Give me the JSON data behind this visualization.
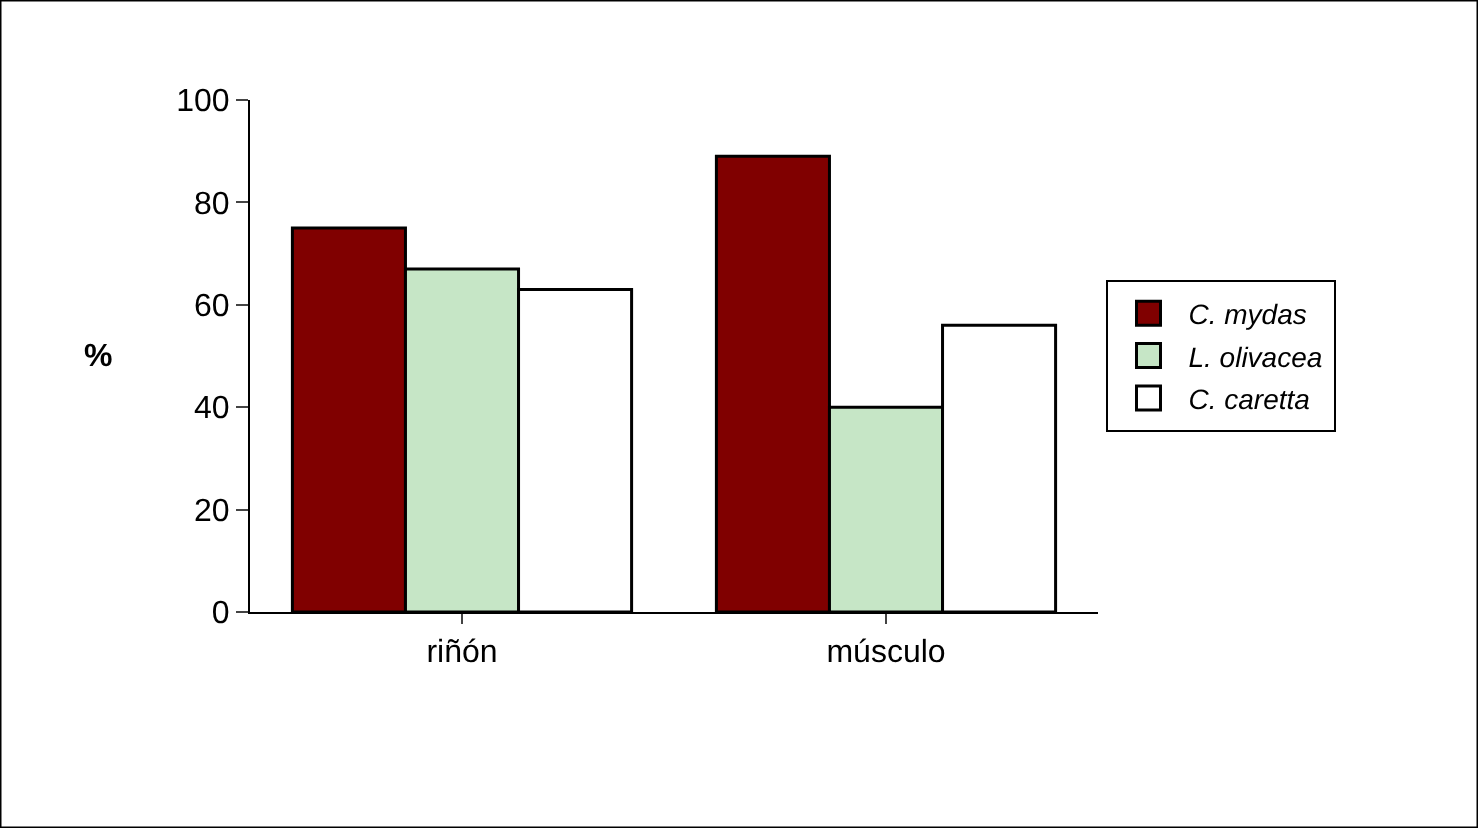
{
  "chart_data": {
    "type": "bar",
    "ylabel": "%",
    "categories": [
      "riñón",
      "músculo"
    ],
    "series": [
      {
        "name": "C. mydas",
        "color": "#800000",
        "values": [
          75,
          89
        ]
      },
      {
        "name": "L. olivacea",
        "color": "#c6e6c6",
        "values": [
          67,
          40
        ]
      },
      {
        "name": "C. caretta",
        "color": "#ffffff",
        "values": [
          63,
          56
        ]
      }
    ],
    "ylim": [
      0,
      100
    ],
    "yticks": [
      0,
      20,
      40,
      60,
      80,
      100
    ],
    "legend": "right"
  }
}
